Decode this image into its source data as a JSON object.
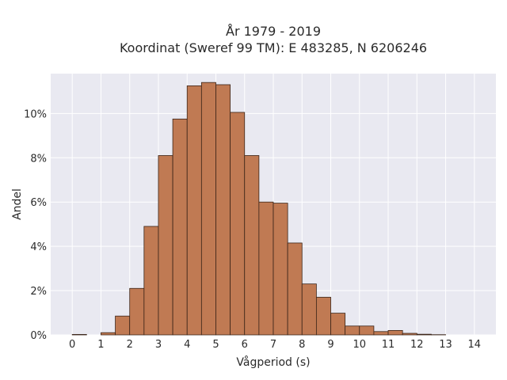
{
  "chart_data": {
    "type": "bar",
    "title_line1": "År 1979 - 2019",
    "title_line2": "Koordinat (Sweref 99 TM): E 483285, N 6206246",
    "xlabel": "Vågperiod (s)",
    "ylabel": "Andel",
    "xlim": [
      -0.75,
      14.75
    ],
    "ylim": [
      0,
      11.8
    ],
    "x_ticks": [
      "0",
      "1",
      "2",
      "3",
      "4",
      "5",
      "6",
      "7",
      "8",
      "9",
      "10",
      "11",
      "12",
      "13",
      "14"
    ],
    "y_ticks": [
      "0%",
      "2%",
      "4%",
      "6%",
      "8%",
      "10%"
    ],
    "bin_width": 0.5,
    "bin_starts": [
      0,
      0.5,
      1,
      1.5,
      2,
      2.5,
      3,
      3.5,
      4,
      4.5,
      5,
      5.5,
      6,
      6.5,
      7,
      7.5,
      8,
      8.5,
      9,
      9.5,
      10,
      10.5,
      11,
      11.5,
      12,
      12.5,
      13,
      13.5
    ],
    "values": [
      0.02,
      0,
      0.1,
      0.85,
      2.1,
      4.9,
      8.1,
      9.75,
      11.25,
      11.4,
      11.3,
      10.05,
      8.1,
      6.0,
      5.95,
      4.15,
      2.3,
      1.7,
      0.98,
      0.4,
      0.4,
      0.15,
      0.2,
      0.07,
      0.03,
      0.01,
      0,
      0
    ],
    "bar_color": "#c07a53",
    "bar_edge_color": "#3a2418",
    "plot_background": "#e9e9f1",
    "grid": true
  }
}
